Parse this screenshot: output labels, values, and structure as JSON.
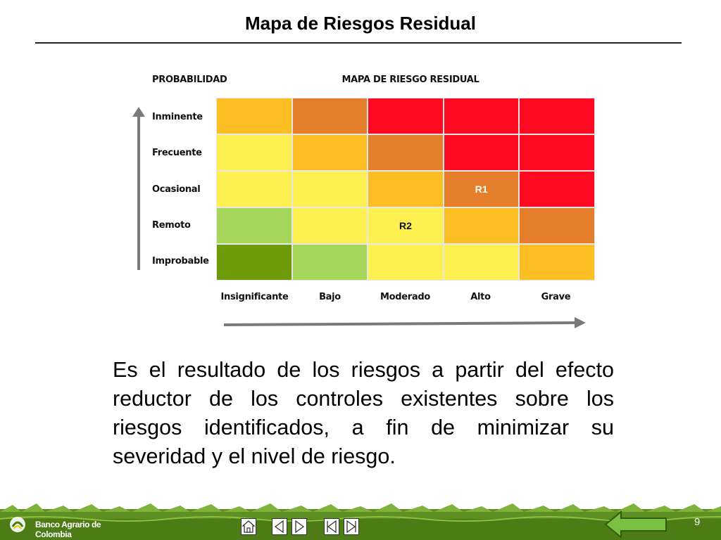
{
  "slide": {
    "title": "Mapa de Riesgos Residual",
    "page_number": "9"
  },
  "matrix": {
    "y_axis_title": "PROBABILIDAD",
    "title": "MAPA DE RIESGO RESIDUAL",
    "rows": [
      "Inminente",
      "Frecuente",
      "Ocasional",
      "Remoto",
      "Improbable"
    ],
    "columns": [
      "Insignificante",
      "Bajo",
      "Moderado",
      "Alto",
      "Grave"
    ],
    "cells": [
      [
        {
          "color": "#fbbf24",
          "label": ""
        },
        {
          "color": "#e57e2a",
          "label": ""
        },
        {
          "color": "#ff0a22",
          "label": ""
        },
        {
          "color": "#ff0a22",
          "label": ""
        },
        {
          "color": "#ff0a22",
          "label": ""
        }
      ],
      [
        {
          "color": "#fdf050",
          "label": ""
        },
        {
          "color": "#fbbf24",
          "label": ""
        },
        {
          "color": "#e57e2a",
          "label": ""
        },
        {
          "color": "#ff0a22",
          "label": ""
        },
        {
          "color": "#ff0a22",
          "label": ""
        }
      ],
      [
        {
          "color": "#fdf050",
          "label": ""
        },
        {
          "color": "#fdf050",
          "label": ""
        },
        {
          "color": "#fbbf24",
          "label": ""
        },
        {
          "color": "#e57e2a",
          "label": "R1"
        },
        {
          "color": "#ff0a22",
          "label": ""
        }
      ],
      [
        {
          "color": "#a5d65a",
          "label": ""
        },
        {
          "color": "#fdf050",
          "label": ""
        },
        {
          "color": "#fdf050",
          "label": "R2"
        },
        {
          "color": "#fbbf24",
          "label": ""
        },
        {
          "color": "#e57e2a",
          "label": ""
        }
      ],
      [
        {
          "color": "#6f9a0a",
          "label": ""
        },
        {
          "color": "#a5d65a",
          "label": ""
        },
        {
          "color": "#fdf050",
          "label": ""
        },
        {
          "color": "#fdf050",
          "label": ""
        },
        {
          "color": "#fbbf24",
          "label": ""
        }
      ]
    ]
  },
  "body_text": "Es el resultado de los riesgos a partir del efecto reductor de los controles existentes sobre los riesgos identificados, a fin de minimizar su severidad y el nivel de riesgo.",
  "footer": {
    "logo_text": "Banco Agrario de Colombia",
    "nav": [
      "home-icon",
      "previous-icon",
      "next-icon",
      "first-icon",
      "last-icon"
    ],
    "back_icon": "back-arrow-icon"
  }
}
